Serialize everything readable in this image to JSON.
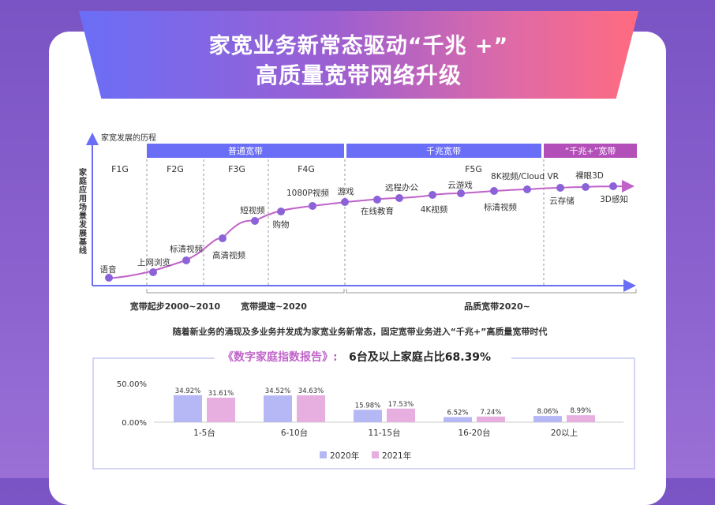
{
  "header": {
    "title_line1": "家宽业务新常态驱动“千兆 +”",
    "title_line2": "高质量宽带网络升级"
  },
  "roadmap": {
    "x_axis_title": "家宽发展的历程",
    "y_axis_title": "家庭应用场景发展基线",
    "bands": [
      {
        "label": "普通宽带",
        "color": "#6a6ef6"
      },
      {
        "label": "千兆宽带",
        "color": "#6a6ef6"
      },
      {
        "label": "“千兆+”宽带",
        "color": "#b34fb8"
      }
    ],
    "generations": [
      "F1G",
      "F2G",
      "F3G",
      "F4G",
      "F5G"
    ],
    "apps": [
      {
        "label": "语音"
      },
      {
        "label": "上网浏览"
      },
      {
        "label": "标清视频"
      },
      {
        "label": "高清视频"
      },
      {
        "label": "短视频"
      },
      {
        "label": "购物"
      },
      {
        "label": "1080P视频"
      },
      {
        "label": "游戏"
      },
      {
        "label": "在线教育"
      },
      {
        "label": "远程办公"
      },
      {
        "label": "4K视频"
      },
      {
        "label": "云游戏"
      },
      {
        "label": "标清视频"
      },
      {
        "label": "8K视频/Cloud VR"
      },
      {
        "label": "云存储"
      },
      {
        "label": "裸眼3D"
      },
      {
        "label": "3D感知"
      }
    ],
    "periods": [
      "宽带起步2000~2010",
      "宽带提速~2020",
      "品质宽带2020~"
    ]
  },
  "caption": "随着新业务的涌现及多业务并发成为家宽业务新常态，固定宽带业务进入“千兆+”高质量宽带时代",
  "chart_title_left": "《数字家庭指数报告》:",
  "chart_title_right": "6台及以上家庭占比68.39%",
  "chart_data": {
    "type": "bar",
    "categories": [
      "1-5台",
      "6-10台",
      "11-15台",
      "16-20台",
      "20以上"
    ],
    "series": [
      {
        "name": "2020年",
        "values": [
          34.92,
          34.52,
          15.98,
          6.52,
          8.06
        ],
        "color": "#b6b8f5"
      },
      {
        "name": "2021年",
        "values": [
          31.61,
          34.63,
          17.53,
          7.24,
          8.99
        ],
        "color": "#e7aee0"
      }
    ],
    "value_labels": [
      [
        "34.92%",
        "34.52%",
        "15.98%",
        "6.52%",
        "8.06%"
      ],
      [
        "31.61%",
        "34.63%",
        "17.53%",
        "7.24%",
        "8.99%"
      ]
    ],
    "y_ticks": [
      "50.00%",
      "0.00%"
    ],
    "ylim": [
      0,
      50
    ],
    "legend": "bottom"
  }
}
